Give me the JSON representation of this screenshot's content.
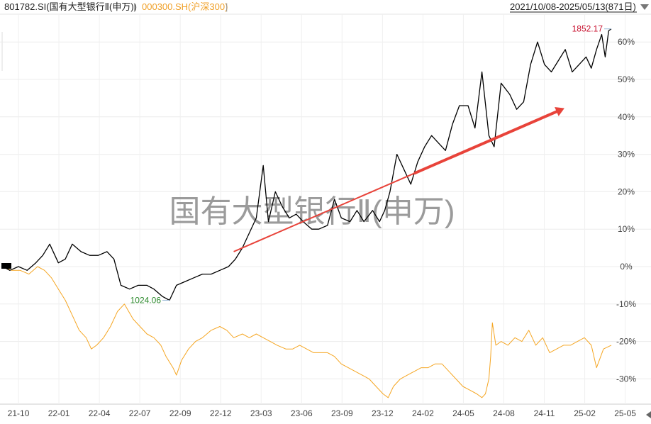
{
  "header": {
    "series1_tab": "801782.SI(国有大型银行Ⅱ(申万))",
    "series2_tab": "000300.SH(沪深300)",
    "separator": "|",
    "date_range": "2021/10/08-2025/05/13(871日)",
    "dropdown_icon": "triangle-down-icon"
  },
  "chart_data": {
    "type": "line",
    "watermark": "国有大型银行Ⅱ(申万)",
    "x_ticks": [
      "21-10",
      "22-01",
      "22-04",
      "22-07",
      "22-09",
      "22-12",
      "23-03",
      "23-06",
      "23-09",
      "23-12",
      "24-02",
      "24-05",
      "24-08",
      "24-11",
      "25-02",
      "25-05"
    ],
    "y_ticks": [
      "60%",
      "50%",
      "40%",
      "30%",
      "20%",
      "10%",
      "0%",
      "-10%",
      "-20%",
      "-30%"
    ],
    "y_values": [
      60,
      50,
      40,
      30,
      20,
      10,
      0,
      -10,
      -20,
      -30
    ],
    "ylim": [
      -37,
      64
    ],
    "series": [
      {
        "name": "801782.SI(国有大型银行Ⅱ(申万))",
        "color": "#000000",
        "points": [
          [
            0,
            0
          ],
          [
            0.4,
            -1
          ],
          [
            0.9,
            0
          ],
          [
            1.4,
            -1
          ],
          [
            1.9,
            1
          ],
          [
            2.3,
            3
          ],
          [
            2.7,
            6
          ],
          [
            3.2,
            1
          ],
          [
            3.6,
            2
          ],
          [
            4,
            6
          ],
          [
            4.5,
            4
          ],
          [
            5,
            3
          ],
          [
            5.5,
            3
          ],
          [
            6,
            4
          ],
          [
            6.4,
            2
          ],
          [
            6.8,
            -5
          ],
          [
            7.3,
            -6
          ],
          [
            7.8,
            -5
          ],
          [
            8.3,
            -5
          ],
          [
            8.7,
            -6
          ],
          [
            9.2,
            -8
          ],
          [
            9.6,
            -9
          ],
          [
            10,
            -5
          ],
          [
            10.5,
            -4
          ],
          [
            11,
            -3
          ],
          [
            11.5,
            -2
          ],
          [
            12,
            -2
          ],
          [
            12.5,
            -1
          ],
          [
            13,
            0
          ],
          [
            13.4,
            2
          ],
          [
            13.8,
            5
          ],
          [
            14.2,
            9
          ],
          [
            14.6,
            13
          ],
          [
            15,
            27
          ],
          [
            15.3,
            12
          ],
          [
            15.7,
            20
          ],
          [
            16.1,
            16
          ],
          [
            16.5,
            13
          ],
          [
            16.9,
            14
          ],
          [
            17.3,
            12
          ],
          [
            17.8,
            10
          ],
          [
            18.2,
            10
          ],
          [
            18.7,
            11
          ],
          [
            19.1,
            18
          ],
          [
            19.5,
            13
          ],
          [
            20,
            12
          ],
          [
            20.4,
            15
          ],
          [
            20.8,
            12
          ],
          [
            21.3,
            15
          ],
          [
            21.7,
            12
          ],
          [
            22,
            15
          ],
          [
            22.3,
            20
          ],
          [
            22.7,
            30
          ],
          [
            23.1,
            26
          ],
          [
            23.5,
            22
          ],
          [
            23.9,
            28
          ],
          [
            24.3,
            32
          ],
          [
            24.7,
            35
          ],
          [
            25.1,
            33
          ],
          [
            25.5,
            31
          ],
          [
            25.9,
            38
          ],
          [
            26.3,
            43
          ],
          [
            26.8,
            43
          ],
          [
            27.2,
            37
          ],
          [
            27.6,
            52
          ],
          [
            28,
            35
          ],
          [
            28.3,
            32
          ],
          [
            28.7,
            49
          ],
          [
            29.2,
            46
          ],
          [
            29.6,
            42
          ],
          [
            30,
            44
          ],
          [
            30.4,
            54
          ],
          [
            30.8,
            60
          ],
          [
            31.2,
            54
          ],
          [
            31.6,
            52
          ],
          [
            32,
            55
          ],
          [
            32.4,
            58
          ],
          [
            32.8,
            52
          ],
          [
            33.2,
            54
          ],
          [
            33.6,
            56
          ],
          [
            33.9,
            53
          ],
          [
            34.2,
            58
          ],
          [
            34.5,
            62
          ],
          [
            34.7,
            56
          ],
          [
            34.9,
            63
          ],
          [
            35.05,
            63.5
          ]
        ]
      },
      {
        "name": "000300.SH(沪深300)",
        "color": "#F5A623",
        "points": [
          [
            0,
            0
          ],
          [
            0.5,
            -1
          ],
          [
            1,
            -1
          ],
          [
            1.5,
            -2
          ],
          [
            2,
            0
          ],
          [
            2.4,
            -1
          ],
          [
            2.8,
            -3
          ],
          [
            3.2,
            -6
          ],
          [
            3.6,
            -9
          ],
          [
            4,
            -13
          ],
          [
            4.4,
            -17
          ],
          [
            4.8,
            -19
          ],
          [
            5.1,
            -22
          ],
          [
            5.4,
            -21
          ],
          [
            5.8,
            -19
          ],
          [
            6.2,
            -16
          ],
          [
            6.6,
            -12
          ],
          [
            7,
            -10
          ],
          [
            7.5,
            -14
          ],
          [
            7.9,
            -16
          ],
          [
            8.3,
            -18
          ],
          [
            8.7,
            -19
          ],
          [
            9.1,
            -21
          ],
          [
            9.4,
            -24
          ],
          [
            9.8,
            -27
          ],
          [
            10,
            -29
          ],
          [
            10.3,
            -25
          ],
          [
            10.7,
            -22
          ],
          [
            11.1,
            -20
          ],
          [
            11.5,
            -19
          ],
          [
            12,
            -17
          ],
          [
            12.5,
            -16
          ],
          [
            12.9,
            -17
          ],
          [
            13.3,
            -19
          ],
          [
            13.8,
            -18
          ],
          [
            14.2,
            -19
          ],
          [
            14.6,
            -18
          ],
          [
            15,
            -19
          ],
          [
            15.4,
            -20
          ],
          [
            15.8,
            -21
          ],
          [
            16.3,
            -22
          ],
          [
            16.7,
            -22
          ],
          [
            17.1,
            -21
          ],
          [
            17.5,
            -22
          ],
          [
            17.9,
            -23
          ],
          [
            18.3,
            -23
          ],
          [
            18.7,
            -23
          ],
          [
            19.1,
            -24
          ],
          [
            19.5,
            -26
          ],
          [
            19.9,
            -27
          ],
          [
            20.3,
            -28
          ],
          [
            20.7,
            -29
          ],
          [
            21.1,
            -30
          ],
          [
            21.5,
            -32
          ],
          [
            21.9,
            -34
          ],
          [
            22.2,
            -35
          ],
          [
            22.5,
            -32
          ],
          [
            22.9,
            -30
          ],
          [
            23.3,
            -29
          ],
          [
            23.7,
            -28
          ],
          [
            24.1,
            -27
          ],
          [
            24.5,
            -27
          ],
          [
            24.9,
            -26
          ],
          [
            25.3,
            -26
          ],
          [
            25.7,
            -28
          ],
          [
            26.1,
            -30
          ],
          [
            26.5,
            -32
          ],
          [
            26.9,
            -33
          ],
          [
            27.3,
            -34
          ],
          [
            27.6,
            -35
          ],
          [
            27.8,
            -34
          ],
          [
            28,
            -30
          ],
          [
            28.1,
            -24
          ],
          [
            28.2,
            -15
          ],
          [
            28.4,
            -21
          ],
          [
            28.7,
            -20
          ],
          [
            29.1,
            -21
          ],
          [
            29.5,
            -19
          ],
          [
            29.9,
            -20
          ],
          [
            30.3,
            -17
          ],
          [
            30.7,
            -21
          ],
          [
            31.1,
            -19
          ],
          [
            31.5,
            -23
          ],
          [
            31.9,
            -22
          ],
          [
            32.3,
            -21
          ],
          [
            32.7,
            -21
          ],
          [
            33.1,
            -20
          ],
          [
            33.5,
            -19
          ],
          [
            33.9,
            -21
          ],
          [
            34.2,
            -27
          ],
          [
            34.6,
            -22
          ],
          [
            35.05,
            -21
          ]
        ]
      }
    ],
    "annotations": [
      {
        "text": "1852.17",
        "x": 35.05,
        "y": 63.5,
        "color": "#C8102E"
      },
      {
        "text": "1024.06",
        "x": 9.6,
        "y": -9,
        "color": "#2E8B2E"
      }
    ],
    "trend_arrow": {
      "color": "#E8433A",
      "from": [
        13.3,
        4
      ],
      "to": [
        32.2,
        42
      ]
    }
  }
}
